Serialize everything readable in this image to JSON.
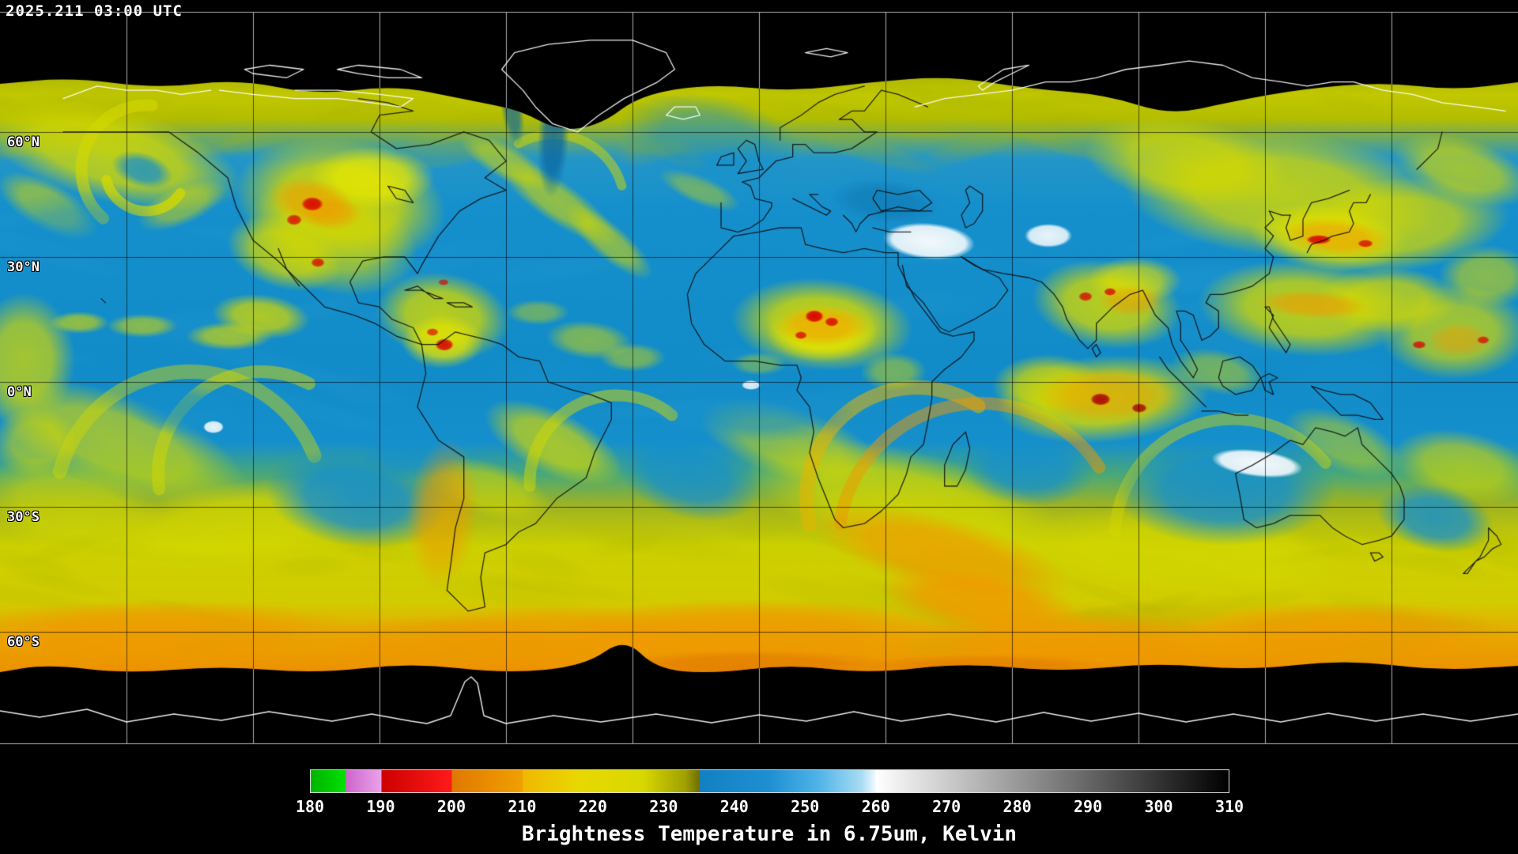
{
  "header": {
    "timestamp": "2025.211 03:00 UTC"
  },
  "map": {
    "latitude_labels": [
      {
        "label": "60°N"
      },
      {
        "label": "30°N"
      },
      {
        "label": "0°N"
      },
      {
        "label": "30°S"
      },
      {
        "label": "60°S"
      }
    ]
  },
  "colorbar": {
    "caption": "Brightness Temperature in 6.75um, Kelvin",
    "min": 180,
    "max": 310,
    "tick_labels": [
      "180",
      "190",
      "200",
      "210",
      "220",
      "230",
      "240",
      "250",
      "260",
      "270",
      "280",
      "290",
      "300",
      "310"
    ],
    "stops": [
      {
        "t": 180,
        "color": "#00b400"
      },
      {
        "t": 185,
        "color": "#00e000"
      },
      {
        "t": 185,
        "color": "#cc66cc"
      },
      {
        "t": 190,
        "color": "#eaa2ea"
      },
      {
        "t": 190,
        "color": "#cc0000"
      },
      {
        "t": 200,
        "color": "#ff1a1a"
      },
      {
        "t": 200,
        "color": "#e07800"
      },
      {
        "t": 210,
        "color": "#f0a000"
      },
      {
        "t": 210,
        "color": "#f0b800"
      },
      {
        "t": 218,
        "color": "#e8d800"
      },
      {
        "t": 227,
        "color": "#d8d800"
      },
      {
        "t": 233,
        "color": "#a0a000"
      },
      {
        "t": 235,
        "color": "#707000"
      },
      {
        "t": 235,
        "color": "#1080c0"
      },
      {
        "t": 245,
        "color": "#1e90d2"
      },
      {
        "t": 252,
        "color": "#50b4e8"
      },
      {
        "t": 258,
        "color": "#a8dcf4"
      },
      {
        "t": 260,
        "color": "#f0fafe"
      },
      {
        "t": 260,
        "color": "#ffffff"
      },
      {
        "t": 310,
        "color": "#000000"
      }
    ]
  },
  "palette": {
    "background": "#000000",
    "sky_blue": "#1690cc",
    "light_blue": "#2fa0da",
    "deep_blue": "#0b67a0",
    "yellow": "#d4d800",
    "bright_yellow": "#e8e800",
    "olive": "#aab400",
    "orange": "#f09800",
    "deep_orange": "#e07800",
    "red": "#d80000",
    "dark_red": "#a80000",
    "white_cloud": "#ffffff",
    "coast_dark": "#0a0a0a",
    "coast_polar": "#ffffff",
    "grid_light": "#cccccc",
    "grid_dark": "#000000"
  }
}
